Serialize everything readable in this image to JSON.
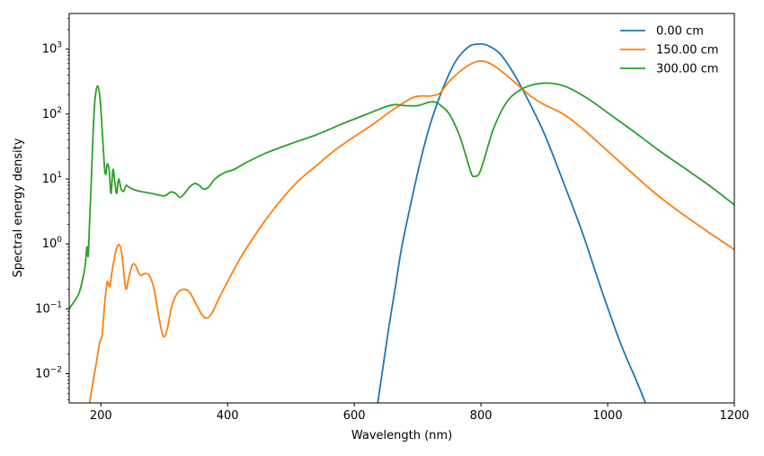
{
  "chart_data": {
    "type": "line",
    "xlabel": "Wavelength (nm)",
    "ylabel": "Spectral energy density",
    "xlim": [
      150,
      1200
    ],
    "ylim_log10": [
      -2.45,
      3.55
    ],
    "yscale": "log",
    "grid": false,
    "legend_placement": "top-right",
    "x_ticks": [
      200,
      400,
      600,
      800,
      1000,
      1200
    ],
    "y_ticks": [
      {
        "exp": -2,
        "label_base": "10",
        "label_exp": "−2"
      },
      {
        "exp": -1,
        "label_base": "10",
        "label_exp": "−1"
      },
      {
        "exp": 0,
        "label_base": "10",
        "label_exp": "0"
      },
      {
        "exp": 1,
        "label_base": "10",
        "label_exp": "1"
      },
      {
        "exp": 2,
        "label_base": "10",
        "label_exp": "2"
      },
      {
        "exp": 3,
        "label_base": "10",
        "label_exp": "3"
      }
    ],
    "series": [
      {
        "name": "0.00 cm",
        "color": "#1f77b4",
        "points": [
          [
            637,
            0.0035
          ],
          [
            645,
            0.012
          ],
          [
            655,
            0.055
          ],
          [
            665,
            0.22
          ],
          [
            675,
            0.9
          ],
          [
            690,
            4.5
          ],
          [
            705,
            20
          ],
          [
            720,
            70
          ],
          [
            740,
            250
          ],
          [
            760,
            650
          ],
          [
            780,
            1080
          ],
          [
            795,
            1200
          ],
          [
            810,
            1150
          ],
          [
            830,
            850
          ],
          [
            850,
            450
          ],
          [
            870,
            200
          ],
          [
            900,
            50
          ],
          [
            930,
            9
          ],
          [
            960,
            1.5
          ],
          [
            990,
            0.2
          ],
          [
            1020,
            0.03
          ],
          [
            1045,
            0.008
          ],
          [
            1060,
            0.0035
          ]
        ]
      },
      {
        "name": "150.00 cm",
        "color": "#ff7f0e",
        "points": [
          [
            182,
            0.0035
          ],
          [
            188,
            0.008
          ],
          [
            193,
            0.015
          ],
          [
            198,
            0.03
          ],
          [
            202,
            0.04
          ],
          [
            206,
            0.12
          ],
          [
            210,
            0.26
          ],
          [
            214,
            0.22
          ],
          [
            218,
            0.4
          ],
          [
            224,
            0.8
          ],
          [
            229,
            0.97
          ],
          [
            233,
            0.7
          ],
          [
            237,
            0.3
          ],
          [
            240,
            0.2
          ],
          [
            244,
            0.3
          ],
          [
            250,
            0.48
          ],
          [
            255,
            0.46
          ],
          [
            262,
            0.33
          ],
          [
            270,
            0.35
          ],
          [
            277,
            0.32
          ],
          [
            284,
            0.2
          ],
          [
            290,
            0.09
          ],
          [
            296,
            0.045
          ],
          [
            300,
            0.037
          ],
          [
            305,
            0.05
          ],
          [
            312,
            0.11
          ],
          [
            320,
            0.17
          ],
          [
            330,
            0.2
          ],
          [
            340,
            0.18
          ],
          [
            350,
            0.12
          ],
          [
            360,
            0.08
          ],
          [
            367,
            0.072
          ],
          [
            375,
            0.085
          ],
          [
            390,
            0.17
          ],
          [
            420,
            0.6
          ],
          [
            450,
            1.7
          ],
          [
            480,
            4.2
          ],
          [
            510,
            9
          ],
          [
            540,
            16
          ],
          [
            570,
            28
          ],
          [
            600,
            45
          ],
          [
            630,
            70
          ],
          [
            660,
            115
          ],
          [
            690,
            175
          ],
          [
            705,
            190
          ],
          [
            720,
            190
          ],
          [
            735,
            210
          ],
          [
            750,
            320
          ],
          [
            770,
            480
          ],
          [
            790,
            630
          ],
          [
            805,
            650
          ],
          [
            820,
            560
          ],
          [
            840,
            400
          ],
          [
            860,
            270
          ],
          [
            880,
            185
          ],
          [
            900,
            140
          ],
          [
            930,
            100
          ],
          [
            960,
            60
          ],
          [
            1000,
            27
          ],
          [
            1040,
            12
          ],
          [
            1080,
            5.5
          ],
          [
            1120,
            2.8
          ],
          [
            1160,
            1.5
          ],
          [
            1200,
            0.82
          ]
        ]
      },
      {
        "name": "300.00 cm",
        "color": "#2ca02c",
        "points": [
          [
            150,
            0.1
          ],
          [
            158,
            0.13
          ],
          [
            165,
            0.17
          ],
          [
            170,
            0.25
          ],
          [
            175,
            0.45
          ],
          [
            178,
            0.9
          ],
          [
            180,
            0.65
          ],
          [
            182,
            2
          ],
          [
            185,
            10
          ],
          [
            188,
            60
          ],
          [
            191,
            180
          ],
          [
            195,
            270
          ],
          [
            199,
            160
          ],
          [
            203,
            40
          ],
          [
            206,
            14
          ],
          [
            208,
            12
          ],
          [
            210,
            17
          ],
          [
            213,
            14
          ],
          [
            216,
            6
          ],
          [
            219,
            14
          ],
          [
            222,
            9
          ],
          [
            225,
            6
          ],
          [
            228,
            10
          ],
          [
            232,
            7
          ],
          [
            236,
            6.5
          ],
          [
            240,
            8
          ],
          [
            244,
            7.5
          ],
          [
            250,
            7
          ],
          [
            260,
            6.5
          ],
          [
            280,
            6
          ],
          [
            300,
            5.5
          ],
          [
            310,
            6.3
          ],
          [
            318,
            6
          ],
          [
            325,
            5.2
          ],
          [
            332,
            6
          ],
          [
            340,
            7.5
          ],
          [
            348,
            8.5
          ],
          [
            355,
            8
          ],
          [
            362,
            7
          ],
          [
            370,
            7.5
          ],
          [
            380,
            10
          ],
          [
            395,
            12.5
          ],
          [
            410,
            14
          ],
          [
            430,
            18
          ],
          [
            460,
            25
          ],
          [
            500,
            35
          ],
          [
            540,
            48
          ],
          [
            580,
            70
          ],
          [
            620,
            100
          ],
          [
            650,
            130
          ],
          [
            665,
            140
          ],
          [
            680,
            135
          ],
          [
            700,
            135
          ],
          [
            715,
            150
          ],
          [
            725,
            155
          ],
          [
            735,
            140
          ],
          [
            750,
            100
          ],
          [
            765,
            50
          ],
          [
            775,
            25
          ],
          [
            785,
            12
          ],
          [
            790,
            11
          ],
          [
            797,
            12
          ],
          [
            805,
            20
          ],
          [
            820,
            60
          ],
          [
            840,
            150
          ],
          [
            860,
            230
          ],
          [
            880,
            280
          ],
          [
            900,
            300
          ],
          [
            920,
            290
          ],
          [
            940,
            250
          ],
          [
            970,
            170
          ],
          [
            1000,
            105
          ],
          [
            1040,
            55
          ],
          [
            1080,
            28
          ],
          [
            1120,
            15
          ],
          [
            1160,
            8
          ],
          [
            1200,
            4
          ]
        ]
      }
    ]
  }
}
